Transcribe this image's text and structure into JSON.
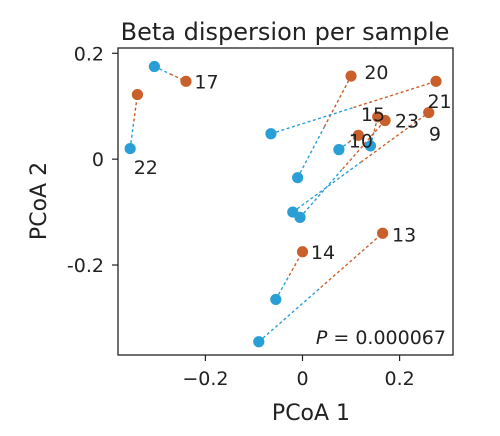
{
  "chart_data": {
    "type": "scatter",
    "title": "Beta dispersion per sample",
    "xlabel": "PCoA 1",
    "ylabel": "PCoA 2",
    "xlim": [
      -0.38,
      0.31
    ],
    "ylim": [
      -0.37,
      0.21
    ],
    "xticks": [
      -0.2,
      0,
      0.2
    ],
    "xtick_labels": [
      "−0.2",
      "0",
      "0.2"
    ],
    "yticks": [
      -0.2,
      0,
      0.2
    ],
    "ytick_labels": [
      "-0.2",
      "0",
      "0.2"
    ],
    "grid": false,
    "colors": {
      "group_a": "#2a9fd6",
      "group_b": "#c9602b"
    },
    "annotation": {
      "italic": "P",
      "text": " = 0.000067"
    },
    "pairs": [
      {
        "label": "17",
        "a": [
          -0.305,
          0.175
        ],
        "b": [
          -0.24,
          0.147
        ]
      },
      {
        "label": "22",
        "a": [
          -0.355,
          0.02
        ],
        "b": [
          -0.34,
          0.122
        ]
      },
      {
        "label": "20",
        "a": [
          -0.01,
          -0.035
        ],
        "b": [
          0.1,
          0.157
        ]
      },
      {
        "label": "21",
        "a": [
          -0.065,
          0.048
        ],
        "b": [
          0.275,
          0.147
        ]
      },
      {
        "label": "15",
        "a": [
          0.14,
          0.025
        ],
        "b": [
          0.155,
          0.08
        ]
      },
      {
        "label": "10",
        "a": [
          0.075,
          0.018
        ],
        "b": [
          0.115,
          0.045
        ]
      },
      {
        "label": "23",
        "a": [
          -0.005,
          -0.11
        ],
        "b": [
          0.17,
          0.073
        ]
      },
      {
        "label": "9",
        "a": [
          -0.02,
          -0.1
        ],
        "b": [
          0.26,
          0.088
        ]
      },
      {
        "label": "14",
        "a": [
          -0.055,
          -0.265
        ],
        "b": [
          0.0,
          -0.175
        ]
      },
      {
        "label": "13",
        "a": [
          -0.09,
          -0.345
        ],
        "b": [
          0.165,
          -0.14
        ]
      }
    ],
    "labels": [
      {
        "text": "17",
        "x": -0.235,
        "y": 0.147
      },
      {
        "text": "22",
        "x": -0.36,
        "y": -0.015
      },
      {
        "text": "20",
        "x": 0.115,
        "y": 0.165
      },
      {
        "text": "21",
        "x": 0.245,
        "y": 0.11
      },
      {
        "text": "15",
        "x": 0.108,
        "y": 0.085
      },
      {
        "text": "23",
        "x": 0.178,
        "y": 0.073
      },
      {
        "text": "10",
        "x": 0.083,
        "y": 0.035
      },
      {
        "text": "9",
        "x": 0.248,
        "y": 0.048
      },
      {
        "text": "14",
        "x": 0.005,
        "y": -0.175
      },
      {
        "text": "13",
        "x": 0.172,
        "y": -0.142
      }
    ]
  }
}
